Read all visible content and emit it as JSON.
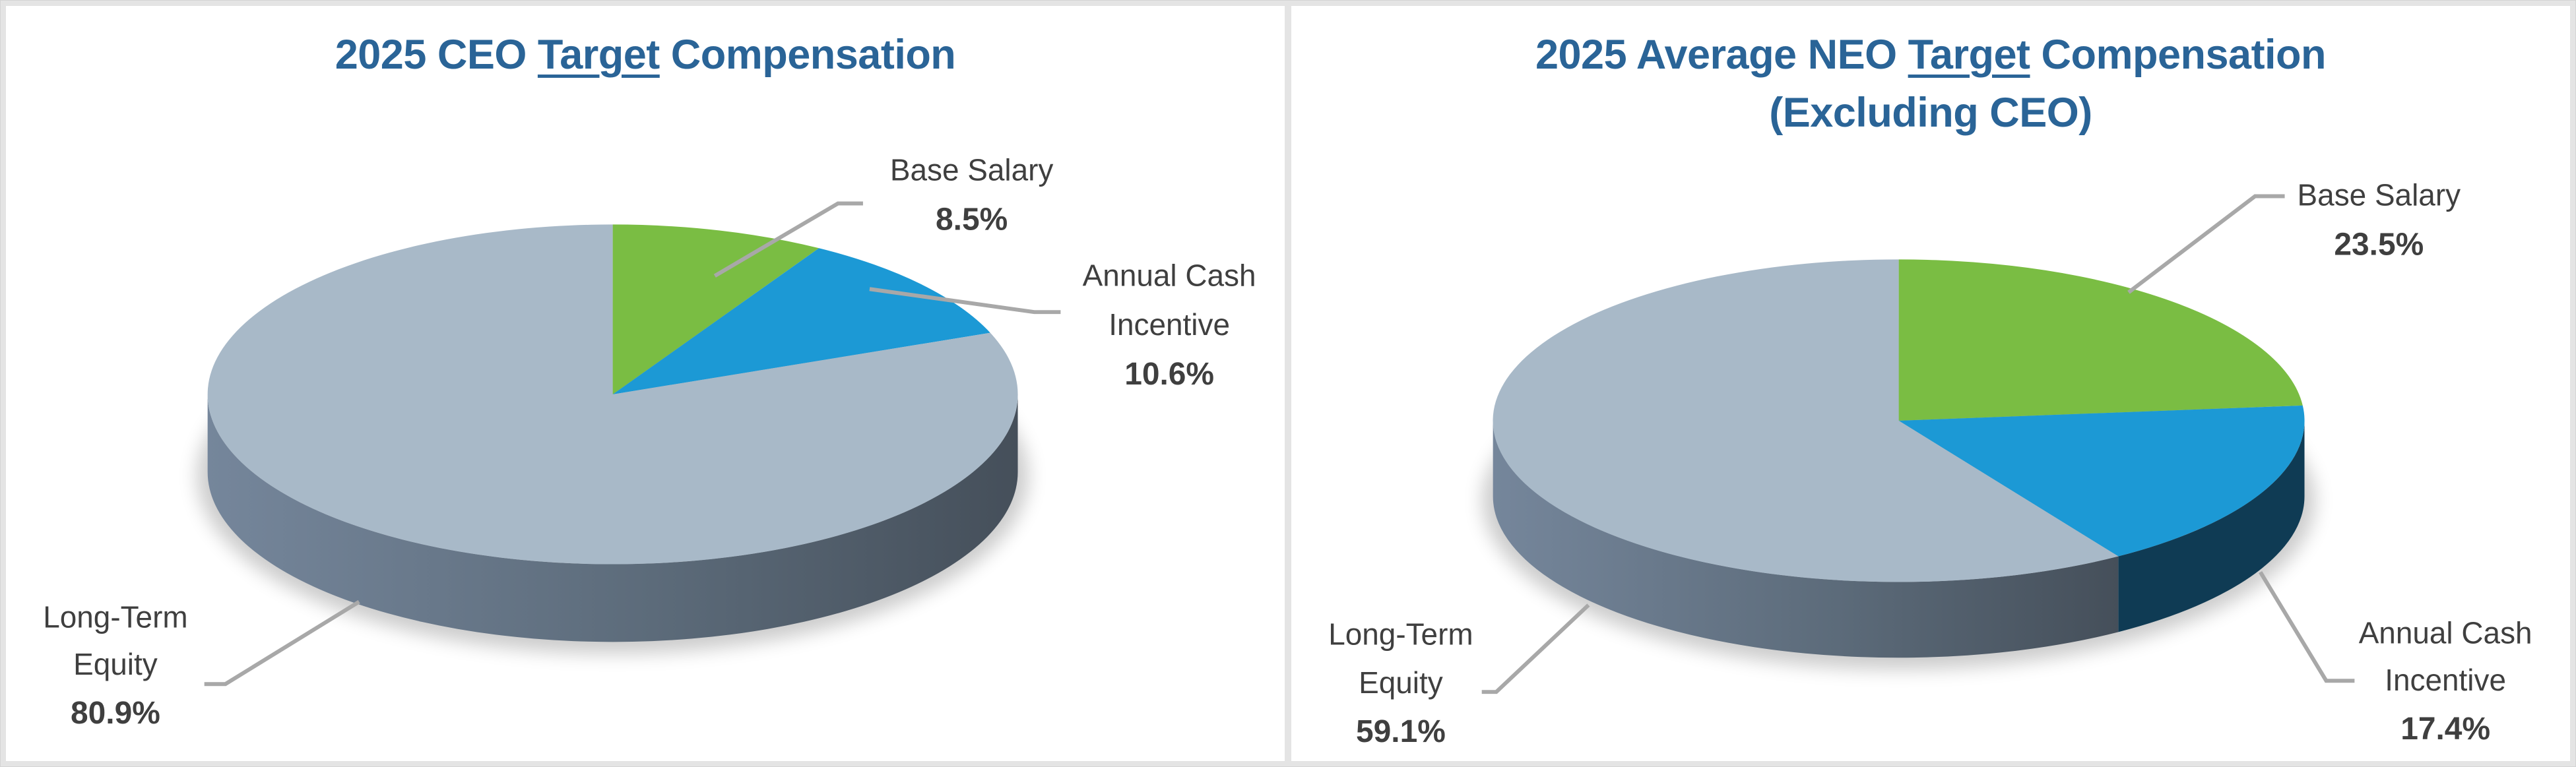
{
  "page": {
    "background_color": "#e4e4e4",
    "panel_color": "#ffffff"
  },
  "colors": {
    "title_blue": "#2A6497",
    "label_text": "#3F3F3F",
    "leader_line": "#A8A8A8",
    "green": "#7ABD43",
    "blue": "#1C99D5",
    "slate": "#A8B9C8",
    "slate_wall_left": "#75869B",
    "slate_wall_mid": "#5C6B7A",
    "slate_wall_right": "#454F5A",
    "navy_wall": "#0F3B54",
    "green_wall": "#55862E"
  },
  "chart_data": [
    {
      "type": "pie",
      "effect": "3d",
      "direction": "clockwise",
      "start_angle_deg": -90,
      "labels_position": "outside-leader-lines",
      "legend": "none",
      "title": {
        "pre": "2025 CEO ",
        "underline": "Target",
        "post": " Compensation",
        "line2": ""
      },
      "slices": [
        {
          "name": "Base Salary",
          "value_pct": 8.5,
          "pct_label": "8.5%",
          "color": "green",
          "label_lines": [
            "Base Salary",
            ""
          ]
        },
        {
          "name": "Annual Cash Incentive",
          "value_pct": 10.6,
          "pct_label": "10.6%",
          "color": "blue",
          "label_lines": [
            "Annual Cash",
            "Incentive"
          ]
        },
        {
          "name": "Long-Term Equity",
          "value_pct": 80.9,
          "pct_label": "80.9%",
          "color": "slate",
          "label_lines": [
            "Long-Term",
            "Equity"
          ]
        }
      ]
    },
    {
      "type": "pie",
      "effect": "3d",
      "direction": "clockwise",
      "start_angle_deg": -90,
      "labels_position": "outside-leader-lines",
      "legend": "none",
      "title": {
        "pre": "2025 Average NEO ",
        "underline": "Target",
        "post": " Compensation",
        "line2": "(Excluding CEO)"
      },
      "slices": [
        {
          "name": "Base Salary",
          "value_pct": 23.5,
          "pct_label": "23.5%",
          "color": "green",
          "label_lines": [
            "Base Salary",
            ""
          ]
        },
        {
          "name": "Annual Cash Incentive",
          "value_pct": 17.4,
          "pct_label": "17.4%",
          "color": "blue",
          "label_lines": [
            "Annual Cash",
            "Incentive"
          ]
        },
        {
          "name": "Long-Term Equity",
          "value_pct": 59.1,
          "pct_label": "59.1%",
          "color": "slate",
          "label_lines": [
            "Long-Term",
            "Equity"
          ]
        }
      ]
    }
  ]
}
